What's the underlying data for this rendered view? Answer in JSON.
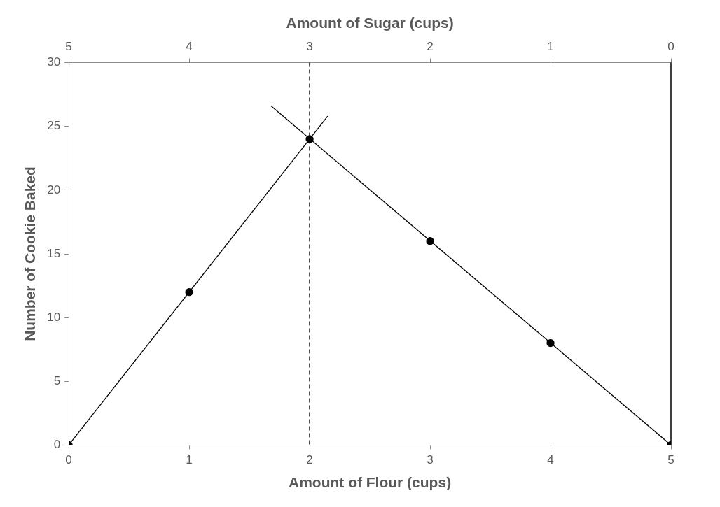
{
  "chart_data": {
    "type": "scatter",
    "xlabel": "Amount of Flour (cups)",
    "ylabel": "Number of Cookie Baked",
    "x2label": "Amount of Sugar (cups)",
    "xlim": [
      0,
      5
    ],
    "xticks": [
      0,
      1,
      2,
      3,
      4,
      5
    ],
    "ylim": [
      0,
      30
    ],
    "yticks": [
      0,
      5,
      10,
      15,
      20,
      25,
      30
    ],
    "x2lim": [
      5,
      0
    ],
    "x2ticks": [
      5,
      4,
      3,
      2,
      1,
      0
    ],
    "grid": false,
    "legend": false,
    "series": [
      {
        "type": "line",
        "x": [
          0,
          2.15
        ],
        "values": [
          0,
          25.8
        ],
        "color": "#000000",
        "marker": "none",
        "line_style": "solid"
      },
      {
        "type": "line",
        "x": [
          1.68,
          5
        ],
        "values": [
          26.6,
          0
        ],
        "color": "#000000",
        "marker": "none",
        "line_style": "solid"
      },
      {
        "x": [
          0,
          1,
          2,
          3,
          4,
          5
        ],
        "values": [
          0,
          12,
          24,
          16,
          8,
          0
        ],
        "color": "#000000",
        "marker": "circle"
      }
    ],
    "ref_lines": [
      {
        "axis": "x",
        "value": 2,
        "color": "#000000",
        "line_style": "dashed"
      },
      {
        "axis": "x",
        "value": 5,
        "color": "#000000",
        "line_style": "solid"
      }
    ]
  }
}
